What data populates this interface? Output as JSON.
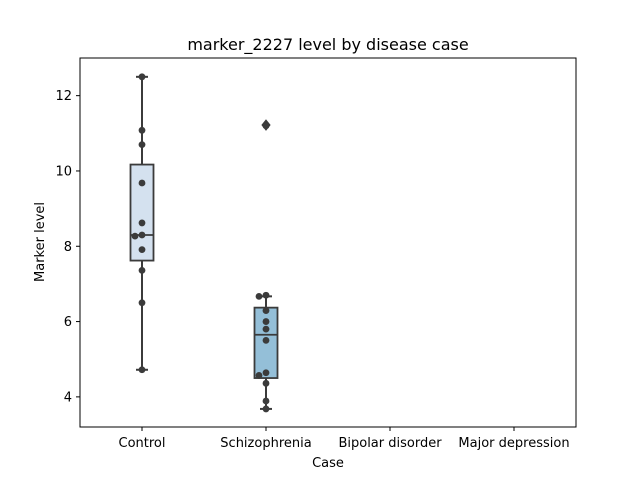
{
  "chart_data": {
    "type": "box",
    "title": "marker_2227 level by disease case",
    "xlabel": "Case",
    "ylabel": "Marker level",
    "categories": [
      "Control",
      "Schizophrenia",
      "Bipolar disorder",
      "Major depression"
    ],
    "ylim": [
      3.2,
      13.0
    ],
    "yticks": [
      4,
      6,
      8,
      10,
      12
    ],
    "grid": false,
    "legend": "none",
    "boxes": [
      {
        "category": "Control",
        "whisker_low": 4.72,
        "q1": 7.62,
        "median": 8.3,
        "q3": 10.17,
        "whisker_high": 12.5,
        "outliers": [],
        "fill": "#d4e1ef"
      },
      {
        "category": "Schizophrenia",
        "whisker_low": 3.68,
        "q1": 4.5,
        "median": 5.65,
        "q3": 6.37,
        "whisker_high": 6.67,
        "outliers": [
          11.22
        ],
        "fill": "#94bfd8"
      }
    ],
    "points": [
      {
        "category": "Control",
        "values": [
          12.5,
          11.08,
          10.7,
          9.68,
          8.62,
          8.3,
          8.27,
          7.91,
          7.36,
          6.5,
          4.72
        ]
      },
      {
        "category": "Schizophrenia",
        "values": [
          11.2,
          6.7,
          6.67,
          6.29,
          6.0,
          5.8,
          5.5,
          4.64,
          4.57,
          4.36,
          3.89,
          3.68
        ]
      }
    ],
    "colors": {
      "box_edge": "#3b3b3b",
      "points": "#3b3b3b"
    }
  }
}
